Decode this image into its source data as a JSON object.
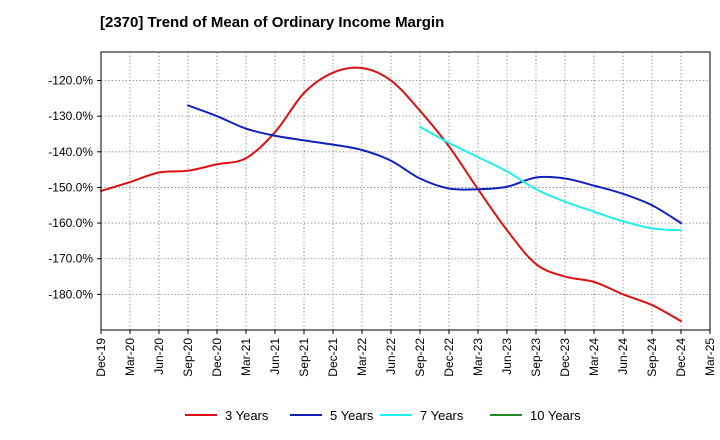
{
  "chart_data": {
    "type": "line",
    "title": "[2370]  Trend of Mean of Ordinary Income Margin",
    "xlabel": "",
    "ylabel": "",
    "ylim": [
      -190,
      -112
    ],
    "yticks": [
      -120,
      -130,
      -140,
      -150,
      -160,
      -170,
      -180
    ],
    "ytick_labels": [
      "-120.0%",
      "-130.0%",
      "-140.0%",
      "-150.0%",
      "-160.0%",
      "-170.0%",
      "-180.0%"
    ],
    "x_categories": [
      "Dec-19",
      "Mar-20",
      "Jun-20",
      "Sep-20",
      "Dec-20",
      "Mar-21",
      "Jun-21",
      "Sep-21",
      "Dec-21",
      "Mar-22",
      "Jun-22",
      "Sep-22",
      "Dec-22",
      "Mar-23",
      "Jun-23",
      "Sep-23",
      "Dec-23",
      "Mar-24",
      "Jun-24",
      "Sep-24",
      "Dec-24",
      "Mar-25"
    ],
    "grid": true,
    "legend_position": "bottom",
    "series": [
      {
        "name": "3 Years",
        "color": "#dd1111",
        "values": [
          -151.0,
          -148.5,
          -145.8,
          -145.3,
          -143.5,
          -141.8,
          -134.5,
          -123.5,
          -117.8,
          -116.5,
          -120.0,
          -128.5,
          -138.5,
          -150.5,
          -162.0,
          -171.5,
          -175.0,
          -176.5,
          -180.0,
          -183.0,
          -187.5,
          null
        ]
      },
      {
        "name": "5 Years",
        "color": "#1122bb",
        "values": [
          null,
          null,
          null,
          -127.0,
          -130.0,
          -133.5,
          -135.5,
          -136.8,
          -138.0,
          -139.5,
          -142.5,
          -147.5,
          -150.3,
          -150.5,
          -149.8,
          -147.2,
          -147.5,
          -149.5,
          -151.8,
          -155.0,
          -160.0,
          null
        ]
      },
      {
        "name": "7 Years",
        "color": "#22eeee",
        "values": [
          null,
          null,
          null,
          null,
          null,
          null,
          null,
          null,
          null,
          null,
          null,
          -133.0,
          -137.5,
          -141.5,
          -145.5,
          -150.5,
          -154.0,
          -156.8,
          -159.5,
          -161.5,
          -162.0,
          null
        ]
      },
      {
        "name": "10 Years",
        "color": "#228822",
        "values": [
          null,
          null,
          null,
          null,
          null,
          null,
          null,
          null,
          null,
          null,
          null,
          null,
          null,
          null,
          null,
          null,
          null,
          null,
          null,
          null,
          null,
          null
        ]
      }
    ]
  }
}
